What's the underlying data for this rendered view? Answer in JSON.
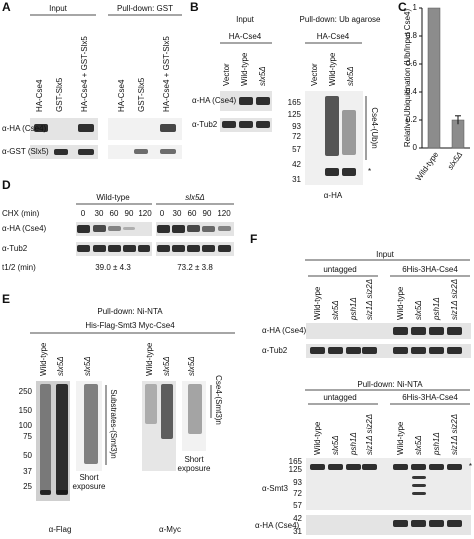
{
  "panels": [
    {
      "letter": "A",
      "input": "Input",
      "pulldown": "Pull-down: GST",
      "lanes": [
        "HA-Cse4",
        "GST-Slx5",
        "HA-Cse4 + GST-Slx5",
        "HA-Cse4",
        "GST-Slx5",
        "HA-Cse4 + GST-Slx5"
      ],
      "rows": [
        "α-HA (Cse4)",
        "α-GST (Slx5)"
      ]
    },
    {
      "letter": "B",
      "input": "Input",
      "pulldown": "Pull-down: Ub agarose",
      "groups": [
        "HA-Cse4",
        "HA-Cse4"
      ],
      "lanes": [
        "Vector",
        "Wild-type",
        "slx5Δ",
        "Vector",
        "Wild-type",
        "slx5Δ"
      ],
      "rows": [
        "α-HA (Cse4)",
        "α-Tub2"
      ],
      "markers": [
        "165",
        "125",
        "93",
        "72",
        "57",
        "42",
        "31"
      ],
      "bracket": "Cse4-(Ub)n",
      "star": "*",
      "antibody": "α-HA"
    },
    {
      "letter": "D",
      "groups": [
        "Wild-type",
        "slx5Δ"
      ],
      "chx": "CHX (min)",
      "times": [
        "0",
        "30",
        "60",
        "90",
        "120",
        "0",
        "30",
        "60",
        "90",
        "120"
      ],
      "rows": [
        "α-HA (Cse4)",
        "α-Tub2"
      ],
      "half_life_label": "t1/2 (min)",
      "half_lives": [
        "39.0 ± 4.3",
        "73.2 ± 3.8"
      ]
    },
    {
      "letter": "E",
      "pulldown": "Pull-down: Ni-NTA",
      "strain": "His-Flag-Smt3 Myc-Cse4",
      "lanes": [
        "Wild-type",
        "slx5Δ",
        "slx5Δ",
        "Wild-type",
        "slx5Δ",
        "slx5Δ"
      ],
      "markers": [
        "250",
        "150",
        "100",
        "75",
        "50",
        "37",
        "25"
      ],
      "brackets": [
        "Substrates-(Smt3)n",
        "Cse4-(Smt3)n"
      ],
      "short_exposure": [
        [
          "Short",
          "exposure"
        ],
        [
          "Short",
          "exposure"
        ]
      ],
      "antibodies": [
        "α-Flag",
        "α-Myc"
      ]
    },
    {
      "letter": "F",
      "input": "Input",
      "pulldown": "Pull-down: Ni-NTA",
      "groups": [
        "untagged",
        "6His-3HA-Cse4",
        "untagged",
        "6His-3HA-Cse4"
      ],
      "lanes": [
        "Wild-type",
        "slx5Δ",
        "psh1Δ",
        "siz1Δ siz2Δ",
        "Wild-type",
        "slx5Δ",
        "psh1Δ",
        "siz1Δ siz2Δ",
        "Wild-type",
        "slx5Δ",
        "psh1Δ",
        "siz1Δ siz2Δ",
        "Wild-type",
        "slx5Δ",
        "psh1Δ",
        "siz1Δ siz2Δ"
      ],
      "rows": [
        "α-HA (Cse4)",
        "α-Tub2",
        "α-Smt3",
        "α-HA (Cse4)"
      ],
      "markers": [
        "165",
        "125",
        "93",
        "72",
        "57",
        "42",
        "31"
      ],
      "star": "*"
    }
  ],
  "chart_data": {
    "type": "bar",
    "letter": "C",
    "ylabel": "Relative Ubiquitination (Ub/Input Cse4)",
    "categories": [
      "Wild-type",
      "slx5Δ"
    ],
    "values": [
      1,
      0.2
    ],
    "errors": [
      null,
      0.03
    ],
    "color": "#8c8c8c",
    "ylim": [
      0,
      1
    ],
    "yticks": [
      0,
      0.2,
      0.4,
      0.6,
      0.8,
      1
    ]
  }
}
